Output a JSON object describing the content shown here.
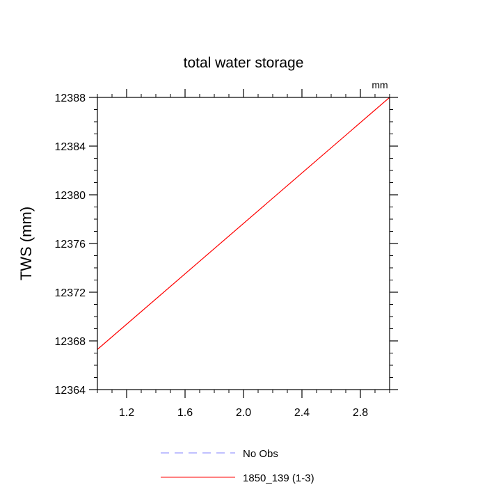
{
  "chart_data": {
    "type": "line",
    "title": "total water storage",
    "units_label": "mm",
    "xlabel": "",
    "ylabel": "TWS  (mm)",
    "xlim": [
      1.0,
      3.0
    ],
    "ylim": [
      12364,
      12388
    ],
    "x_ticks": [
      1.2,
      1.6,
      2.0,
      2.4,
      2.8
    ],
    "x_tick_labels": [
      "1.2",
      "1.6",
      "2.0",
      "2.4",
      "2.8"
    ],
    "y_ticks": [
      12364,
      12368,
      12372,
      12376,
      12380,
      12384,
      12388
    ],
    "y_tick_labels": [
      "12364",
      "12368",
      "12372",
      "12376",
      "12380",
      "12384",
      "12388"
    ],
    "grid": false,
    "legend_position": "bottom-center",
    "series": [
      {
        "name": "No Obs",
        "color": "#8080ff",
        "style": "dashed",
        "x": [],
        "y": []
      },
      {
        "name": "1850_139 (1-3)",
        "color": "#ff0000",
        "style": "solid",
        "x": [
          1.0,
          3.0
        ],
        "y": [
          12367.3,
          12388.0
        ]
      }
    ]
  }
}
